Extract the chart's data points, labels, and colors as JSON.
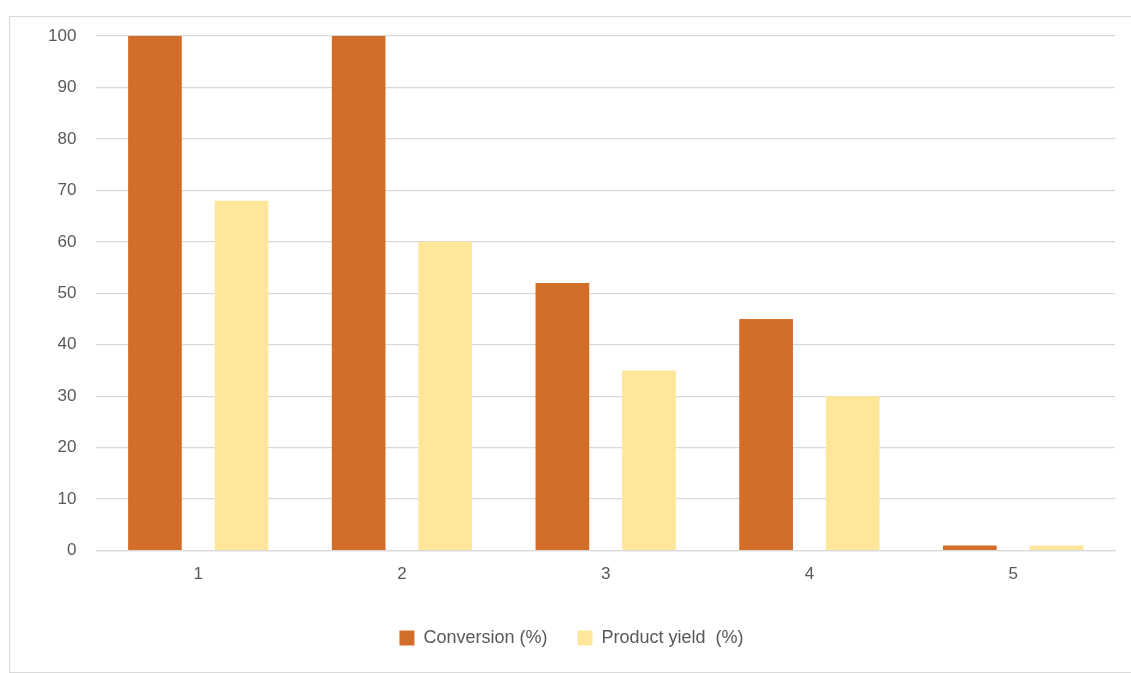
{
  "chart_data": {
    "type": "bar",
    "categories": [
      "1",
      "2",
      "3",
      "4",
      "5"
    ],
    "series": [
      {
        "name": "Conversion (%)",
        "color": "#d36e2a",
        "values": [
          100,
          100,
          52,
          45,
          1
        ]
      },
      {
        "name": "Product yield  (%)",
        "color": "#ffe699",
        "values": [
          68,
          60,
          35,
          30,
          1
        ]
      }
    ],
    "ylim": [
      0,
      100
    ],
    "yticks": [
      0,
      10,
      20,
      30,
      40,
      50,
      60,
      70,
      80,
      90,
      100
    ],
    "grid": "y",
    "legend": "bottom"
  }
}
